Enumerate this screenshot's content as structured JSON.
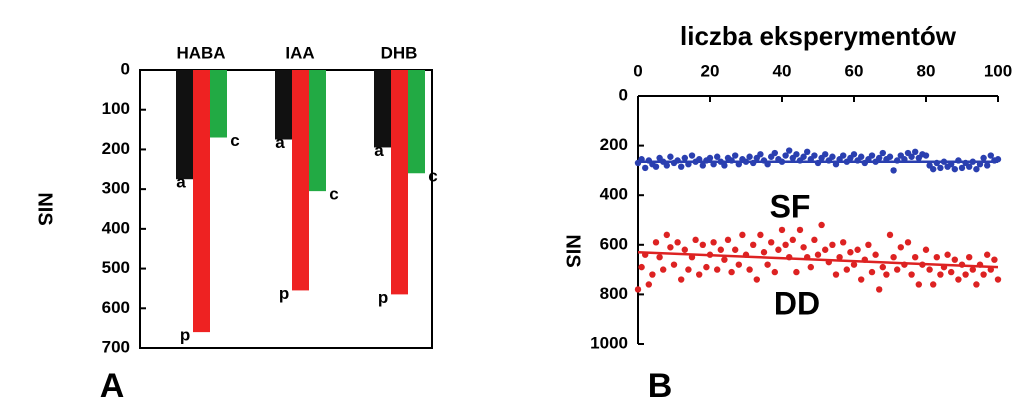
{
  "chart_data": [
    {
      "type": "bar",
      "panel_label": "A",
      "ylabel": "NIS",
      "ylim": [
        0,
        700
      ],
      "yticks": [
        0,
        100,
        200,
        300,
        400,
        500,
        600,
        700
      ],
      "categories": [
        "HABA",
        "IAA",
        "DHB"
      ],
      "series": [
        {
          "name": "a",
          "color": "#111111",
          "values": [
            275,
            175,
            195
          ]
        },
        {
          "name": "p",
          "color": "#ee2222",
          "values": [
            660,
            555,
            565
          ]
        },
        {
          "name": "c",
          "color": "#22aa44",
          "values": [
            170,
            305,
            260
          ]
        }
      ]
    },
    {
      "type": "scatter",
      "panel_label": "B",
      "xlabel": "liczba eksperymentów",
      "ylabel": "NIS",
      "xlim": [
        0,
        100
      ],
      "ylim": [
        0,
        1000
      ],
      "xticks": [
        0,
        20,
        40,
        60,
        80,
        100
      ],
      "yticks": [
        0,
        200,
        400,
        600,
        800,
        1000
      ],
      "series": [
        {
          "name": "SF",
          "color": "#2a3fb0",
          "trend": [
            [
              0,
              265
            ],
            [
              100,
              265
            ]
          ],
          "points": [
            [
              0,
              270
            ],
            [
              1,
              255
            ],
            [
              2,
              290
            ],
            [
              3,
              260
            ],
            [
              4,
              275
            ],
            [
              5,
              285
            ],
            [
              6,
              250
            ],
            [
              7,
              265
            ],
            [
              8,
              280
            ],
            [
              9,
              245
            ],
            [
              10,
              270
            ],
            [
              11,
              260
            ],
            [
              12,
              285
            ],
            [
              13,
              250
            ],
            [
              14,
              275
            ],
            [
              15,
              240
            ],
            [
              16,
              265
            ],
            [
              17,
              255
            ],
            [
              18,
              280
            ],
            [
              19,
              260
            ],
            [
              20,
              250
            ],
            [
              21,
              275
            ],
            [
              22,
              245
            ],
            [
              23,
              265
            ],
            [
              24,
              280
            ],
            [
              25,
              250
            ],
            [
              26,
              260
            ],
            [
              27,
              240
            ],
            [
              28,
              275
            ],
            [
              29,
              255
            ],
            [
              30,
              265
            ],
            [
              31,
              245
            ],
            [
              32,
              270
            ],
            [
              33,
              250
            ],
            [
              34,
              235
            ],
            [
              35,
              260
            ],
            [
              36,
              275
            ],
            [
              37,
              245
            ],
            [
              38,
              230
            ],
            [
              39,
              255
            ],
            [
              40,
              265
            ],
            [
              41,
              240
            ],
            [
              42,
              220
            ],
            [
              43,
              250
            ],
            [
              44,
              235
            ],
            [
              45,
              260
            ],
            [
              46,
              245
            ],
            [
              47,
              225
            ],
            [
              48,
              255
            ],
            [
              49,
              240
            ],
            [
              50,
              270
            ],
            [
              51,
              250
            ],
            [
              52,
              235
            ],
            [
              53,
              260
            ],
            [
              54,
              245
            ],
            [
              55,
              275
            ],
            [
              56,
              255
            ],
            [
              57,
              240
            ],
            [
              58,
              265
            ],
            [
              59,
              250
            ],
            [
              60,
              235
            ],
            [
              61,
              260
            ],
            [
              62,
              245
            ],
            [
              63,
              270
            ],
            [
              64,
              255
            ],
            [
              65,
              240
            ],
            [
              66,
              265
            ],
            [
              67,
              250
            ],
            [
              68,
              230
            ],
            [
              69,
              255
            ],
            [
              70,
              245
            ],
            [
              71,
              300
            ],
            [
              72,
              260
            ],
            [
              73,
              240
            ],
            [
              74,
              255
            ],
            [
              75,
              230
            ],
            [
              76,
              245
            ],
            [
              77,
              225
            ],
            [
              78,
              250
            ],
            [
              79,
              235
            ],
            [
              80,
              240
            ],
            [
              81,
              280
            ],
            [
              82,
              295
            ],
            [
              83,
              270
            ],
            [
              84,
              290
            ],
            [
              85,
              265
            ],
            [
              86,
              285
            ],
            [
              87,
              275
            ],
            [
              88,
              295
            ],
            [
              89,
              260
            ],
            [
              90,
              290
            ],
            [
              91,
              270
            ],
            [
              92,
              285
            ],
            [
              93,
              265
            ],
            [
              94,
              295
            ],
            [
              95,
              275
            ],
            [
              96,
              250
            ],
            [
              97,
              280
            ],
            [
              98,
              240
            ],
            [
              99,
              260
            ],
            [
              100,
              255
            ]
          ]
        },
        {
          "name": "DD",
          "color": "#dd2222",
          "trend": [
            [
              0,
              630
            ],
            [
              100,
              690
            ]
          ],
          "points": [
            [
              0,
              780
            ],
            [
              1,
              690
            ],
            [
              2,
              640
            ],
            [
              3,
              760
            ],
            [
              4,
              720
            ],
            [
              5,
              590
            ],
            [
              6,
              650
            ],
            [
              7,
              700
            ],
            [
              8,
              560
            ],
            [
              9,
              610
            ],
            [
              10,
              680
            ],
            [
              11,
              590
            ],
            [
              12,
              740
            ],
            [
              13,
              620
            ],
            [
              14,
              700
            ],
            [
              15,
              650
            ],
            [
              16,
              580
            ],
            [
              17,
              720
            ],
            [
              18,
              600
            ],
            [
              19,
              690
            ],
            [
              20,
              640
            ],
            [
              21,
              590
            ],
            [
              22,
              700
            ],
            [
              23,
              620
            ],
            [
              24,
              660
            ],
            [
              25,
              580
            ],
            [
              26,
              710
            ],
            [
              27,
              620
            ],
            [
              28,
              680
            ],
            [
              29,
              560
            ],
            [
              30,
              640
            ],
            [
              31,
              700
            ],
            [
              32,
              600
            ],
            [
              33,
              740
            ],
            [
              34,
              560
            ],
            [
              35,
              630
            ],
            [
              36,
              680
            ],
            [
              37,
              590
            ],
            [
              38,
              710
            ],
            [
              39,
              620
            ],
            [
              40,
              540
            ],
            [
              41,
              600
            ],
            [
              42,
              650
            ],
            [
              43,
              580
            ],
            [
              44,
              710
            ],
            [
              45,
              540
            ],
            [
              46,
              610
            ],
            [
              47,
              650
            ],
            [
              48,
              690
            ],
            [
              49,
              580
            ],
            [
              50,
              640
            ],
            [
              51,
              520
            ],
            [
              52,
              620
            ],
            [
              53,
              670
            ],
            [
              54,
              600
            ],
            [
              55,
              720
            ],
            [
              56,
              650
            ],
            [
              57,
              590
            ],
            [
              58,
              700
            ],
            [
              59,
              630
            ],
            [
              60,
              680
            ],
            [
              61,
              620
            ],
            [
              62,
              740
            ],
            [
              63,
              660
            ],
            [
              64,
              600
            ],
            [
              65,
              710
            ],
            [
              66,
              640
            ],
            [
              67,
              780
            ],
            [
              68,
              690
            ],
            [
              69,
              720
            ],
            [
              70,
              560
            ],
            [
              71,
              650
            ],
            [
              72,
              700
            ],
            [
              73,
              610
            ],
            [
              74,
              680
            ],
            [
              75,
              590
            ],
            [
              76,
              720
            ],
            [
              77,
              650
            ],
            [
              78,
              760
            ],
            [
              79,
              680
            ],
            [
              80,
              620
            ],
            [
              81,
              700
            ],
            [
              82,
              760
            ],
            [
              83,
              650
            ],
            [
              84,
              720
            ],
            [
              85,
              690
            ],
            [
              86,
              640
            ],
            [
              87,
              710
            ],
            [
              88,
              660
            ],
            [
              89,
              740
            ],
            [
              90,
              680
            ],
            [
              91,
              720
            ],
            [
              92,
              650
            ],
            [
              93,
              700
            ],
            [
              94,
              760
            ],
            [
              95,
              680
            ],
            [
              96,
              720
            ],
            [
              97,
              640
            ],
            [
              98,
              700
            ],
            [
              99,
              660
            ],
            [
              100,
              740
            ]
          ]
        }
      ]
    }
  ]
}
